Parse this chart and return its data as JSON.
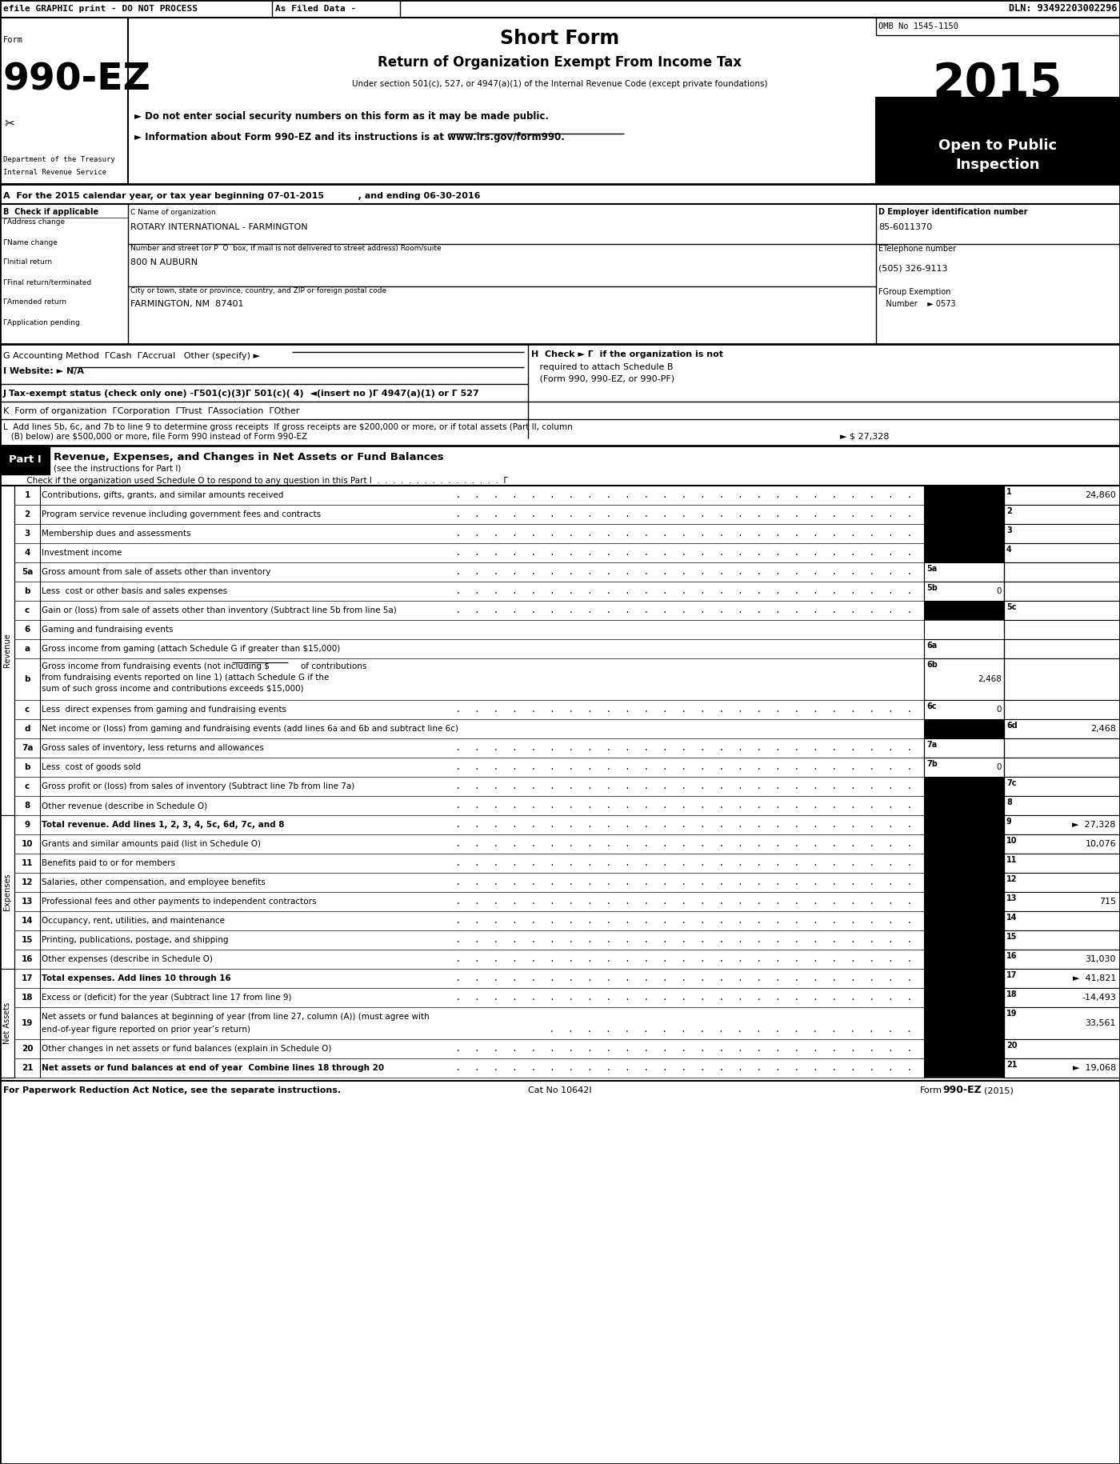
{
  "title": "Short Form",
  "subtitle": "Return of Organization Exempt From Income Tax",
  "form_number": "990-EZ",
  "year": "2015",
  "omb": "OMB No 1545-1150",
  "dln": "DLN: 93492203002296",
  "efile_header": "efile GRAPHIC print - DO NOT PROCESS",
  "filed_data": "As Filed Data -",
  "under_section": "Under section 501(c), 527, or 4947(a)(1) of the Internal Revenue Code (except private foundations)",
  "do_not_enter": "► Do not enter social security numbers on this form as it may be made public.",
  "info_about": "► Information about Form 990-EZ and its instructions is at www.irs.gov/form990.",
  "open_to_public": "Open to Public\nInspection",
  "dept_treasury": "Department of the Treasury",
  "internal_revenue": "Internal Revenue Service",
  "line_A": "A  For the 2015 calendar year, or tax year beginning 07-01-2015           , and ending 06-30-2016",
  "org_name": "ROTARY INTERNATIONAL - FARMINGTON",
  "ein": "85-6011370",
  "street_label": "Number and street (or P  O  box, if mail is not delivered to street address) Room/suite",
  "street": "800 N AUBURN",
  "phone_label": "ETelephone number",
  "phone": "(505) 326-9113",
  "city_label": "City or town, state or province, country, and ZIP or foreign postal code",
  "city": "FARMINGTON, NM  87401",
  "footer_left": "For Paperwork Reduction Act Notice, see the separate instructions.",
  "footer_mid": "Cat No 10642I",
  "footer_right": "Form 990-EZ(2015)"
}
